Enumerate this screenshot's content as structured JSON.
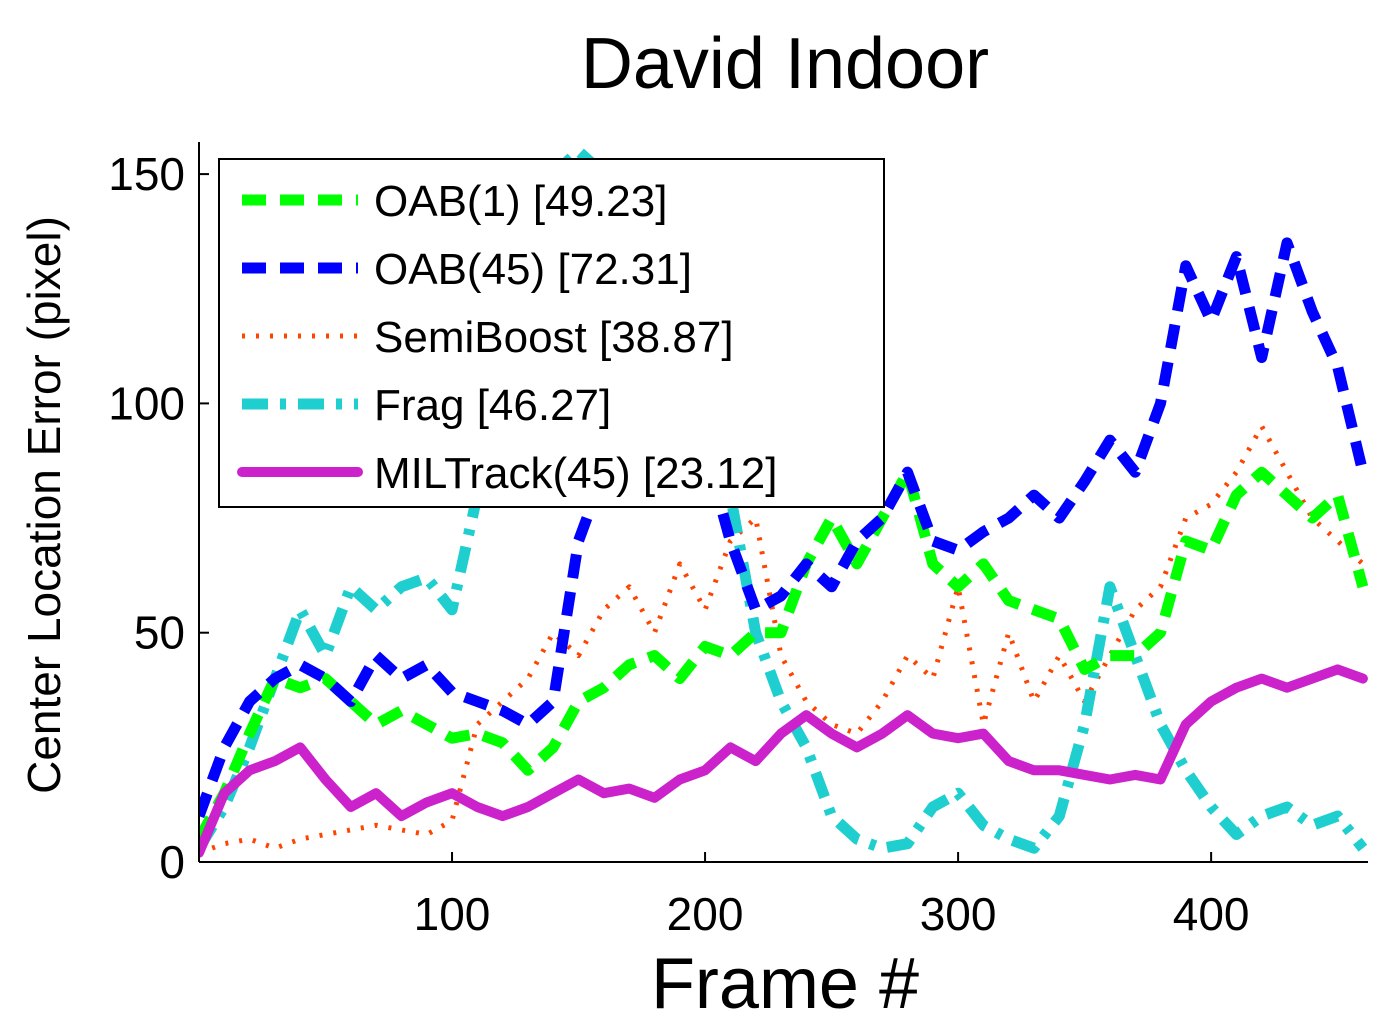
{
  "chart_data": {
    "type": "line",
    "title": "David Indoor",
    "xlabel": "Frame #",
    "ylabel": "Center Location Error (pixel)",
    "xlim": [
      0,
      462
    ],
    "ylim": [
      0,
      157
    ],
    "xticks": [
      100,
      200,
      300,
      400
    ],
    "yticks": [
      0,
      50,
      100,
      150
    ],
    "grid": false,
    "legend_position": "top-left",
    "series": [
      {
        "name": "OAB(1) [49.23]",
        "color": "#00ff00",
        "style": "dashed",
        "x": [
          0,
          10,
          20,
          30,
          40,
          50,
          60,
          70,
          80,
          90,
          100,
          110,
          120,
          130,
          140,
          150,
          160,
          170,
          180,
          190,
          200,
          210,
          220,
          230,
          240,
          250,
          260,
          270,
          280,
          290,
          300,
          310,
          320,
          330,
          340,
          350,
          360,
          370,
          380,
          390,
          400,
          410,
          420,
          430,
          440,
          450,
          460
        ],
        "y": [
          5,
          15,
          28,
          40,
          38,
          40,
          35,
          30,
          33,
          30,
          27,
          28,
          26,
          20,
          25,
          35,
          38,
          43,
          45,
          40,
          47,
          45,
          50,
          50,
          65,
          75,
          65,
          75,
          85,
          65,
          60,
          65,
          57,
          55,
          53,
          42,
          45,
          45,
          50,
          70,
          68,
          80,
          85,
          80,
          75,
          80,
          60
        ]
      },
      {
        "name": "OAB(45) [72.31]",
        "color": "#0000ff",
        "style": "dashed",
        "x": [
          0,
          10,
          20,
          30,
          40,
          50,
          60,
          70,
          80,
          90,
          100,
          110,
          120,
          130,
          140,
          150,
          160,
          170,
          180,
          190,
          200,
          210,
          220,
          230,
          240,
          250,
          260,
          270,
          280,
          290,
          300,
          310,
          320,
          330,
          340,
          350,
          360,
          370,
          380,
          390,
          400,
          410,
          420,
          430,
          440,
          450,
          460
        ],
        "y": [
          10,
          25,
          35,
          40,
          43,
          40,
          35,
          45,
          40,
          43,
          37,
          35,
          33,
          30,
          35,
          70,
          85,
          95,
          100,
          100,
          90,
          70,
          55,
          58,
          65,
          60,
          70,
          75,
          85,
          70,
          68,
          72,
          75,
          80,
          75,
          83,
          92,
          85,
          100,
          130,
          118,
          132,
          110,
          135,
          120,
          108,
          85
        ]
      },
      {
        "name": "SemiBoost [38.87]",
        "color": "#ff4400",
        "style": "dotted",
        "x": [
          0,
          10,
          20,
          30,
          40,
          50,
          60,
          70,
          80,
          90,
          100,
          110,
          120,
          130,
          140,
          150,
          160,
          170,
          180,
          190,
          200,
          210,
          220,
          230,
          240,
          250,
          260,
          270,
          280,
          290,
          300,
          310,
          320,
          330,
          340,
          350,
          360,
          370,
          380,
          390,
          400,
          410,
          420,
          430,
          440,
          450,
          460
        ],
        "y": [
          2,
          4,
          5,
          3,
          5,
          6,
          7,
          8,
          7,
          6,
          9,
          30,
          35,
          40,
          50,
          45,
          55,
          60,
          50,
          65,
          55,
          70,
          75,
          45,
          35,
          30,
          28,
          35,
          45,
          40,
          60,
          30,
          50,
          35,
          45,
          35,
          45,
          55,
          60,
          75,
          78,
          85,
          95,
          85,
          75,
          70,
          65
        ]
      },
      {
        "name": "Frag [46.27]",
        "color": "#1fcfcf",
        "style": "dashdot",
        "x": [
          0,
          10,
          20,
          30,
          40,
          50,
          60,
          70,
          80,
          90,
          100,
          110,
          120,
          130,
          140,
          150,
          160,
          170,
          180,
          190,
          200,
          210,
          220,
          230,
          240,
          250,
          260,
          270,
          280,
          290,
          300,
          310,
          320,
          330,
          340,
          350,
          360,
          370,
          380,
          390,
          400,
          410,
          420,
          430,
          440,
          450,
          460
        ],
        "y": [
          3,
          12,
          25,
          40,
          55,
          45,
          60,
          55,
          60,
          62,
          55,
          80,
          120,
          140,
          150,
          155,
          150,
          140,
          130,
          120,
          100,
          80,
          50,
          35,
          25,
          10,
          5,
          3,
          4,
          12,
          15,
          8,
          5,
          3,
          10,
          30,
          60,
          45,
          30,
          20,
          12,
          6,
          10,
          12,
          8,
          10,
          3
        ]
      },
      {
        "name": "MILTrack(45) [23.12]",
        "color": "#cc22cc",
        "style": "solid",
        "x": [
          0,
          10,
          20,
          30,
          40,
          50,
          60,
          70,
          80,
          90,
          100,
          110,
          120,
          130,
          140,
          150,
          160,
          170,
          180,
          190,
          200,
          210,
          220,
          230,
          240,
          250,
          260,
          270,
          280,
          290,
          300,
          310,
          320,
          330,
          340,
          350,
          360,
          370,
          380,
          390,
          400,
          410,
          420,
          430,
          440,
          450,
          460
        ],
        "y": [
          2,
          15,
          20,
          22,
          25,
          18,
          12,
          15,
          10,
          13,
          15,
          12,
          10,
          12,
          15,
          18,
          15,
          16,
          14,
          18,
          20,
          25,
          22,
          28,
          32,
          28,
          25,
          28,
          32,
          28,
          27,
          28,
          22,
          20,
          20,
          19,
          18,
          19,
          18,
          30,
          35,
          38,
          40,
          38,
          40,
          42,
          40
        ]
      }
    ]
  }
}
